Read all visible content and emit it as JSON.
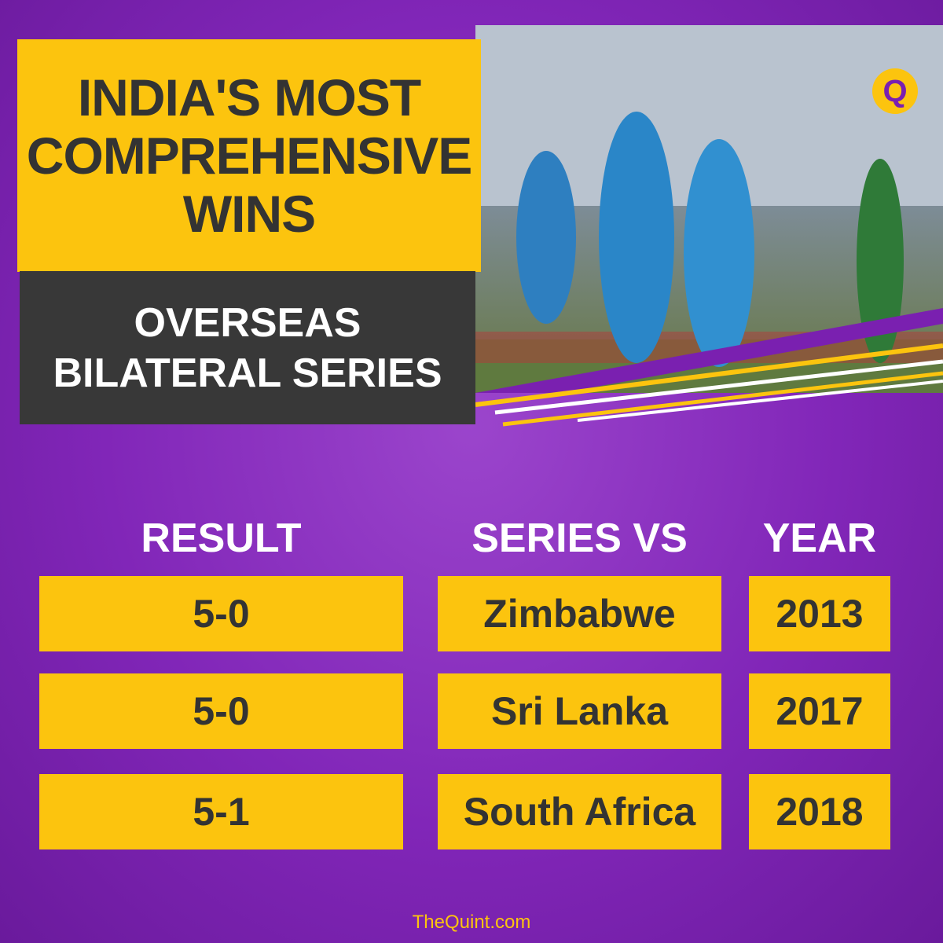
{
  "header": {
    "title": "INDIA'S MOST COMPREHENSIVE WINS",
    "subtitle": "OVERSEAS BILATERAL SERIES",
    "logo": "Q"
  },
  "table": {
    "columns": [
      "RESULT",
      "SERIES VS",
      "YEAR"
    ],
    "rows": [
      [
        "5-0",
        "Zimbabwe",
        2013
      ],
      [
        "5-0",
        "Sri Lanka",
        2017
      ],
      [
        "5-1",
        "South Africa",
        2018
      ]
    ]
  },
  "footer": "TheQuint.com"
}
